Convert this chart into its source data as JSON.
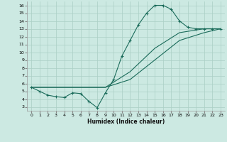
{
  "xlabel": "Humidex (Indice chaleur)",
  "xlim": [
    -0.5,
    23.5
  ],
  "ylim": [
    2.5,
    16.5
  ],
  "xticks": [
    0,
    1,
    2,
    3,
    4,
    5,
    6,
    7,
    8,
    9,
    10,
    11,
    12,
    13,
    14,
    15,
    16,
    17,
    18,
    19,
    20,
    21,
    22,
    23
  ],
  "yticks": [
    3,
    4,
    5,
    6,
    7,
    8,
    9,
    10,
    11,
    12,
    13,
    14,
    15,
    16
  ],
  "bg_color": "#cce9e2",
  "grid_color": "#aacfc5",
  "line_color": "#1a6b5a",
  "curve_x": [
    0,
    1,
    2,
    3,
    4,
    5,
    6,
    7,
    8,
    9,
    10,
    11,
    12,
    13,
    14,
    15,
    16,
    17,
    18,
    19,
    20,
    21,
    22,
    23
  ],
  "curve_y": [
    5.5,
    5.0,
    4.5,
    4.3,
    4.2,
    4.8,
    4.7,
    3.7,
    2.9,
    4.8,
    6.5,
    9.5,
    11.5,
    13.5,
    15.0,
    16.0,
    16.0,
    15.5,
    14.0,
    13.2,
    13.0,
    13.0,
    13.0,
    13.0
  ],
  "line2_x": [
    0,
    9,
    12,
    15,
    18,
    21,
    23
  ],
  "line2_y": [
    5.5,
    5.5,
    7.5,
    10.5,
    12.5,
    13.0,
    13.0
  ],
  "line3_x": [
    0,
    9,
    12,
    15,
    18,
    21,
    23
  ],
  "line3_y": [
    5.5,
    5.5,
    6.5,
    9.0,
    11.5,
    12.5,
    13.0
  ]
}
